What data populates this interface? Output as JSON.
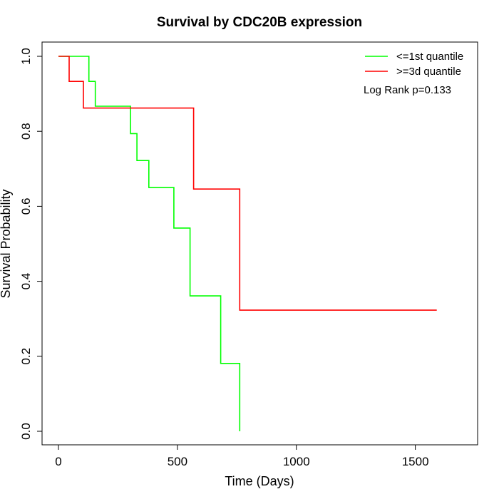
{
  "chart_data": {
    "type": "line",
    "step": true,
    "title": "Survival by CDC20B expression",
    "xlabel": "Time (Days)",
    "ylabel": "Survival Probability",
    "xlim": [
      0,
      1600
    ],
    "ylim": [
      0,
      1
    ],
    "x_ticks": [
      0,
      500,
      1000,
      1500
    ],
    "y_ticks": [
      0.0,
      0.2,
      0.4,
      0.6,
      0.8,
      1.0
    ],
    "x_tick_labels": [
      "0",
      "500",
      "1000",
      "1500"
    ],
    "y_tick_labels": [
      "0.0",
      "0.2",
      "0.4",
      "0.6",
      "0.8",
      "1.0"
    ],
    "grid": false,
    "legend_position": "top-right",
    "annotation": "Log Rank p=0.133",
    "series": [
      {
        "name": "<=1st quantile",
        "color": "#00ff00",
        "x": [
          0,
          128,
          128,
          155,
          155,
          303,
          303,
          330,
          330,
          380,
          380,
          485,
          485,
          553,
          553,
          682,
          682,
          762,
          762
        ],
        "y": [
          1.0,
          1.0,
          0.933,
          0.933,
          0.867,
          0.867,
          0.794,
          0.794,
          0.722,
          0.722,
          0.65,
          0.65,
          0.542,
          0.542,
          0.361,
          0.361,
          0.181,
          0.181,
          0.0
        ]
      },
      {
        "name": ">=3d quantile",
        "color": "#ff0000",
        "x": [
          0,
          45,
          45,
          105,
          105,
          568,
          568,
          762,
          762,
          1590
        ],
        "y": [
          1.0,
          1.0,
          0.933,
          0.933,
          0.862,
          0.862,
          0.646,
          0.646,
          0.323,
          0.323
        ]
      }
    ]
  }
}
